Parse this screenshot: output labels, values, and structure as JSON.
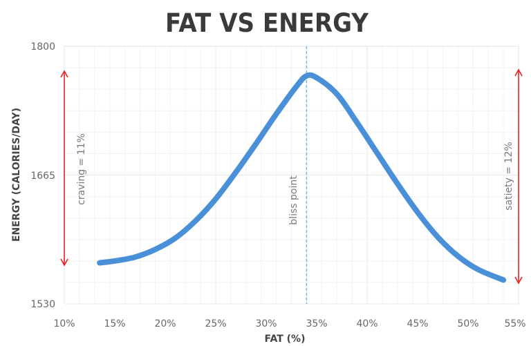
{
  "chart_data": {
    "type": "line",
    "title": "FAT VS ENERGY",
    "xlabel": "FAT (%)",
    "ylabel": "ENERGY (CALORIES/DAY)",
    "xlim": [
      10,
      55
    ],
    "ylim": [
      1530,
      1800
    ],
    "x_ticks": [
      "10%",
      "15%",
      "20%",
      "25%",
      "30%",
      "35%",
      "40%",
      "45%",
      "50%",
      "55%"
    ],
    "y_ticks": [
      "1530",
      "1665",
      "1800"
    ],
    "grid": true,
    "legend": null,
    "series": [
      {
        "name": "Energy",
        "color": "#4a90d9",
        "x": [
          13.5,
          15,
          17,
          19,
          21,
          23,
          25,
          27,
          29,
          31,
          33,
          34,
          35,
          37,
          39,
          41,
          43,
          45,
          47,
          49,
          51,
          53.5
        ],
        "y": [
          1573,
          1575,
          1579,
          1587,
          1599,
          1617,
          1640,
          1668,
          1698,
          1729,
          1758,
          1769,
          1767,
          1750,
          1720,
          1688,
          1656,
          1626,
          1600,
          1580,
          1566,
          1555
        ]
      }
    ],
    "annotations": [
      {
        "type": "vline",
        "x": 34,
        "label": "bliss point",
        "style": "dashed",
        "color": "#6fb6e8"
      },
      {
        "type": "double-arrow",
        "x": 10,
        "y_range": [
          1571,
          1773
        ],
        "label": "craving = 11%",
        "color": "#e8201f"
      },
      {
        "type": "double-arrow",
        "x": 55,
        "y_range": [
          1553,
          1775
        ],
        "label": "satiety = 12%",
        "color": "#e8201f"
      }
    ]
  },
  "labels": {
    "title": "FAT VS ENERGY",
    "xlabel": "FAT (%)",
    "ylabel": "ENERGY (CALORIES/DAY)",
    "bliss": "bliss point",
    "craving": "craving = 11%",
    "satiety": "satiety = 12%",
    "x_ticks": [
      "10%",
      "15%",
      "20%",
      "25%",
      "30%",
      "35%",
      "40%",
      "45%",
      "50%",
      "55%"
    ],
    "y_ticks": {
      "top": "1800",
      "mid": "1665",
      "bottom": "1530"
    }
  },
  "colors": {
    "line": "#4a90d9",
    "arrow": "#e8201f",
    "bliss_line": "#6fb6e8",
    "grid_major": "#e6e6e6",
    "grid_minor": "#f2f2f2"
  }
}
